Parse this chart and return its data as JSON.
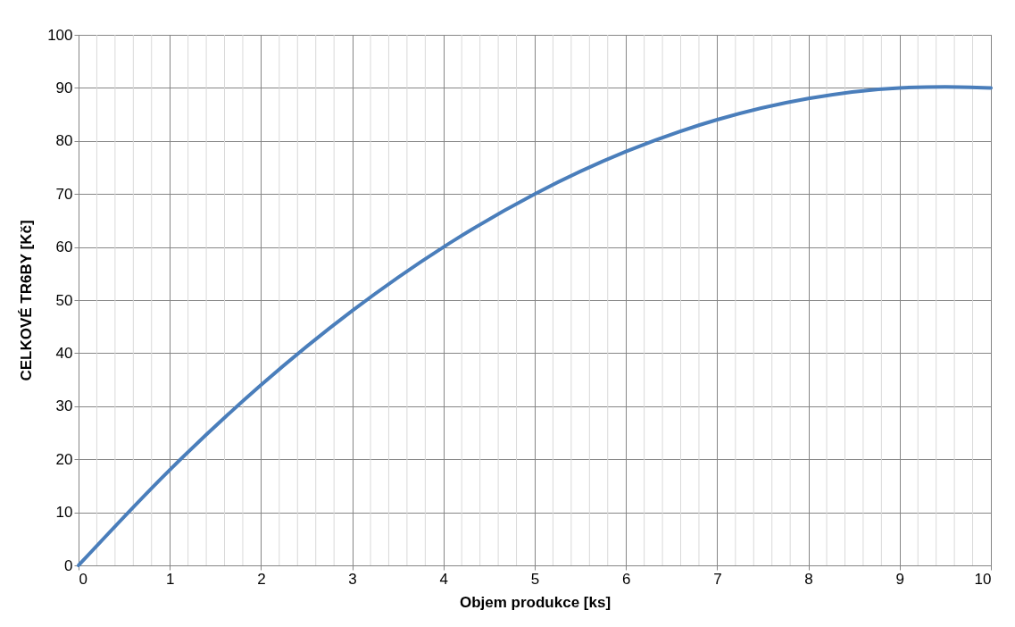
{
  "chart_data": {
    "type": "line",
    "xlabel": "Objem produkce [ks]",
    "ylabel": "CELKOVÉ TR6BY [Kč]",
    "x": [
      0,
      1,
      2,
      3,
      4,
      5,
      6,
      7,
      8,
      9,
      9.5,
      10
    ],
    "series": [
      {
        "color": "#4a7ebb",
        "values": [
          0,
          18,
          34,
          48,
          60,
          70,
          78,
          84,
          88,
          90,
          90.2,
          90
        ]
      }
    ],
    "xlim": [
      0,
      10
    ],
    "xticks": [
      0,
      1,
      2,
      3,
      4,
      5,
      6,
      7,
      8,
      9,
      10
    ],
    "ylim": [
      0,
      100
    ],
    "yticks": [
      0,
      10,
      20,
      30,
      40,
      50,
      60,
      70,
      80,
      90,
      100
    ],
    "grid": true,
    "legend": false,
    "marker": "none",
    "line_style": "solid"
  }
}
